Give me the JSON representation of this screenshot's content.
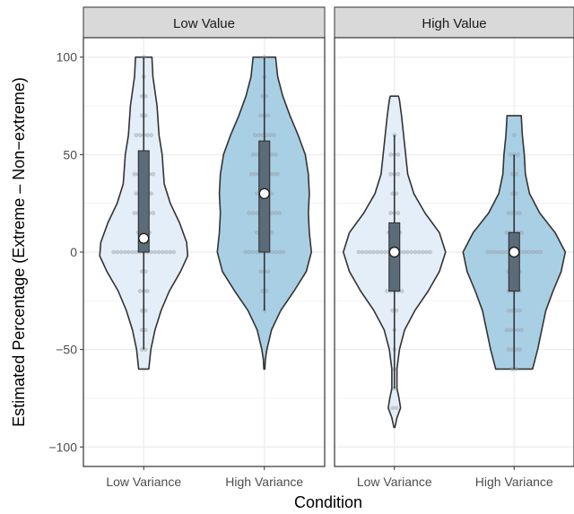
{
  "chart_data": {
    "type": "violin",
    "title": "",
    "xlabel": "Condition",
    "ylabel": "Estimated Percentage (Extreme – Non−extreme)",
    "ylim": [
      -110,
      110
    ],
    "y_ticks": [
      -100,
      -50,
      0,
      50,
      100
    ],
    "y_tick_labels": [
      "−100",
      "−50",
      "0",
      "50",
      "100"
    ],
    "categories": [
      "Low Variance",
      "High Variance"
    ],
    "grid": true,
    "colors": {
      "low_variance_fill": "#e3eef8",
      "high_variance_fill": "#a9cfe4",
      "outline": "#333333",
      "box_fill": "#5c6b78",
      "panel_bg": "#ffffff",
      "grid": "#ebebeb",
      "strip_bg": "#d9d9d9"
    },
    "panels": [
      {
        "label": "Low Value",
        "violins": [
          {
            "category": "Low Variance",
            "range": [
              -60,
              100
            ],
            "quartiles": [
              0,
              7,
              52
            ],
            "whiskers": [
              -50,
              100
            ],
            "mean": 7,
            "density": [
              [
                -60,
                0.1
              ],
              [
                -50,
                0.14
              ],
              [
                -40,
                0.22
              ],
              [
                -30,
                0.34
              ],
              [
                -20,
                0.5
              ],
              [
                -10,
                0.72
              ],
              [
                -2,
                0.86
              ],
              [
                5,
                0.84
              ],
              [
                15,
                0.7
              ],
              [
                25,
                0.52
              ],
              [
                35,
                0.4
              ],
              [
                50,
                0.36
              ],
              [
                60,
                0.3
              ],
              [
                75,
                0.26
              ],
              [
                90,
                0.18
              ],
              [
                100,
                0.16
              ]
            ],
            "points": [
              [
                100,
                1
              ],
              [
                90,
                1
              ],
              [
                80,
                2
              ],
              [
                70,
                2
              ],
              [
                60,
                5
              ],
              [
                50,
                3
              ],
              [
                40,
                6
              ],
              [
                30,
                5
              ],
              [
                20,
                6
              ],
              [
                10,
                4
              ],
              [
                0,
                17
              ],
              [
                -10,
                2
              ],
              [
                -20,
                3
              ],
              [
                -30,
                2
              ],
              [
                -40,
                2
              ],
              [
                -50,
                2
              ]
            ]
          },
          {
            "category": "High Variance",
            "range": [
              -60,
              100
            ],
            "quartiles": [
              0,
              30,
              57
            ],
            "whiskers": [
              -30,
              100
            ],
            "mean": 30,
            "density": [
              [
                -60,
                0.01
              ],
              [
                -55,
                0.02
              ],
              [
                -50,
                0.05
              ],
              [
                -40,
                0.14
              ],
              [
                -30,
                0.32
              ],
              [
                -20,
                0.58
              ],
              [
                -10,
                0.82
              ],
              [
                0,
                0.92
              ],
              [
                10,
                0.88
              ],
              [
                20,
                0.86
              ],
              [
                30,
                0.88
              ],
              [
                40,
                0.86
              ],
              [
                50,
                0.8
              ],
              [
                60,
                0.66
              ],
              [
                70,
                0.5
              ],
              [
                80,
                0.36
              ],
              [
                90,
                0.26
              ],
              [
                100,
                0.22
              ]
            ],
            "points": [
              [
                100,
                1
              ],
              [
                90,
                1
              ],
              [
                80,
                2
              ],
              [
                70,
                3
              ],
              [
                60,
                6
              ],
              [
                50,
                7
              ],
              [
                40,
                8
              ],
              [
                30,
                5
              ],
              [
                20,
                9
              ],
              [
                10,
                5
              ],
              [
                0,
                11
              ],
              [
                -10,
                3
              ],
              [
                -20,
                2
              ],
              [
                -30,
                1
              ]
            ]
          }
        ]
      },
      {
        "label": "High Value",
        "violins": [
          {
            "category": "Low Variance",
            "range": [
              -90,
              80
            ],
            "quartiles": [
              -20,
              0,
              15
            ],
            "whiskers": [
              -70,
              60
            ],
            "mean": 0,
            "density": [
              [
                -90,
                0.01
              ],
              [
                -85,
                0.05
              ],
              [
                -80,
                0.12
              ],
              [
                -75,
                0.09
              ],
              [
                -70,
                0.05
              ],
              [
                -60,
                0.05
              ],
              [
                -50,
                0.1
              ],
              [
                -40,
                0.2
              ],
              [
                -30,
                0.4
              ],
              [
                -20,
                0.66
              ],
              [
                -10,
                0.88
              ],
              [
                0,
                1.0
              ],
              [
                10,
                0.88
              ],
              [
                20,
                0.6
              ],
              [
                30,
                0.38
              ],
              [
                40,
                0.26
              ],
              [
                50,
                0.22
              ],
              [
                60,
                0.18
              ],
              [
                70,
                0.14
              ],
              [
                78,
                0.1
              ],
              [
                80,
                0.08
              ]
            ],
            "points": [
              [
                60,
                1
              ],
              [
                50,
                3
              ],
              [
                40,
                3
              ],
              [
                30,
                2
              ],
              [
                20,
                3
              ],
              [
                10,
                4
              ],
              [
                0,
                20
              ],
              [
                -10,
                3
              ],
              [
                -20,
                5
              ],
              [
                -30,
                2
              ],
              [
                -40,
                1
              ],
              [
                -50,
                1
              ],
              [
                -60,
                1
              ],
              [
                -70,
                1
              ],
              [
                -80,
                2
              ]
            ]
          },
          {
            "category": "High Variance",
            "range": [
              -60,
              70
            ],
            "quartiles": [
              -20,
              0,
              10
            ],
            "whiskers": [
              -60,
              50
            ],
            "mean": 0,
            "density": [
              [
                -60,
                0.36
              ],
              [
                -50,
                0.46
              ],
              [
                -40,
                0.54
              ],
              [
                -30,
                0.62
              ],
              [
                -20,
                0.76
              ],
              [
                -10,
                0.92
              ],
              [
                0,
                1.0
              ],
              [
                10,
                0.8
              ],
              [
                20,
                0.5
              ],
              [
                30,
                0.3
              ],
              [
                40,
                0.22
              ],
              [
                50,
                0.2
              ],
              [
                60,
                0.16
              ],
              [
                70,
                0.14
              ]
            ],
            "points": [
              [
                60,
                1
              ],
              [
                50,
                3
              ],
              [
                40,
                2
              ],
              [
                30,
                2
              ],
              [
                20,
                4
              ],
              [
                10,
                5
              ],
              [
                0,
                15
              ],
              [
                -10,
                4
              ],
              [
                -20,
                4
              ],
              [
                -30,
                4
              ],
              [
                -40,
                5
              ],
              [
                -50,
                4
              ],
              [
                -60,
                2
              ]
            ]
          }
        ]
      }
    ]
  }
}
